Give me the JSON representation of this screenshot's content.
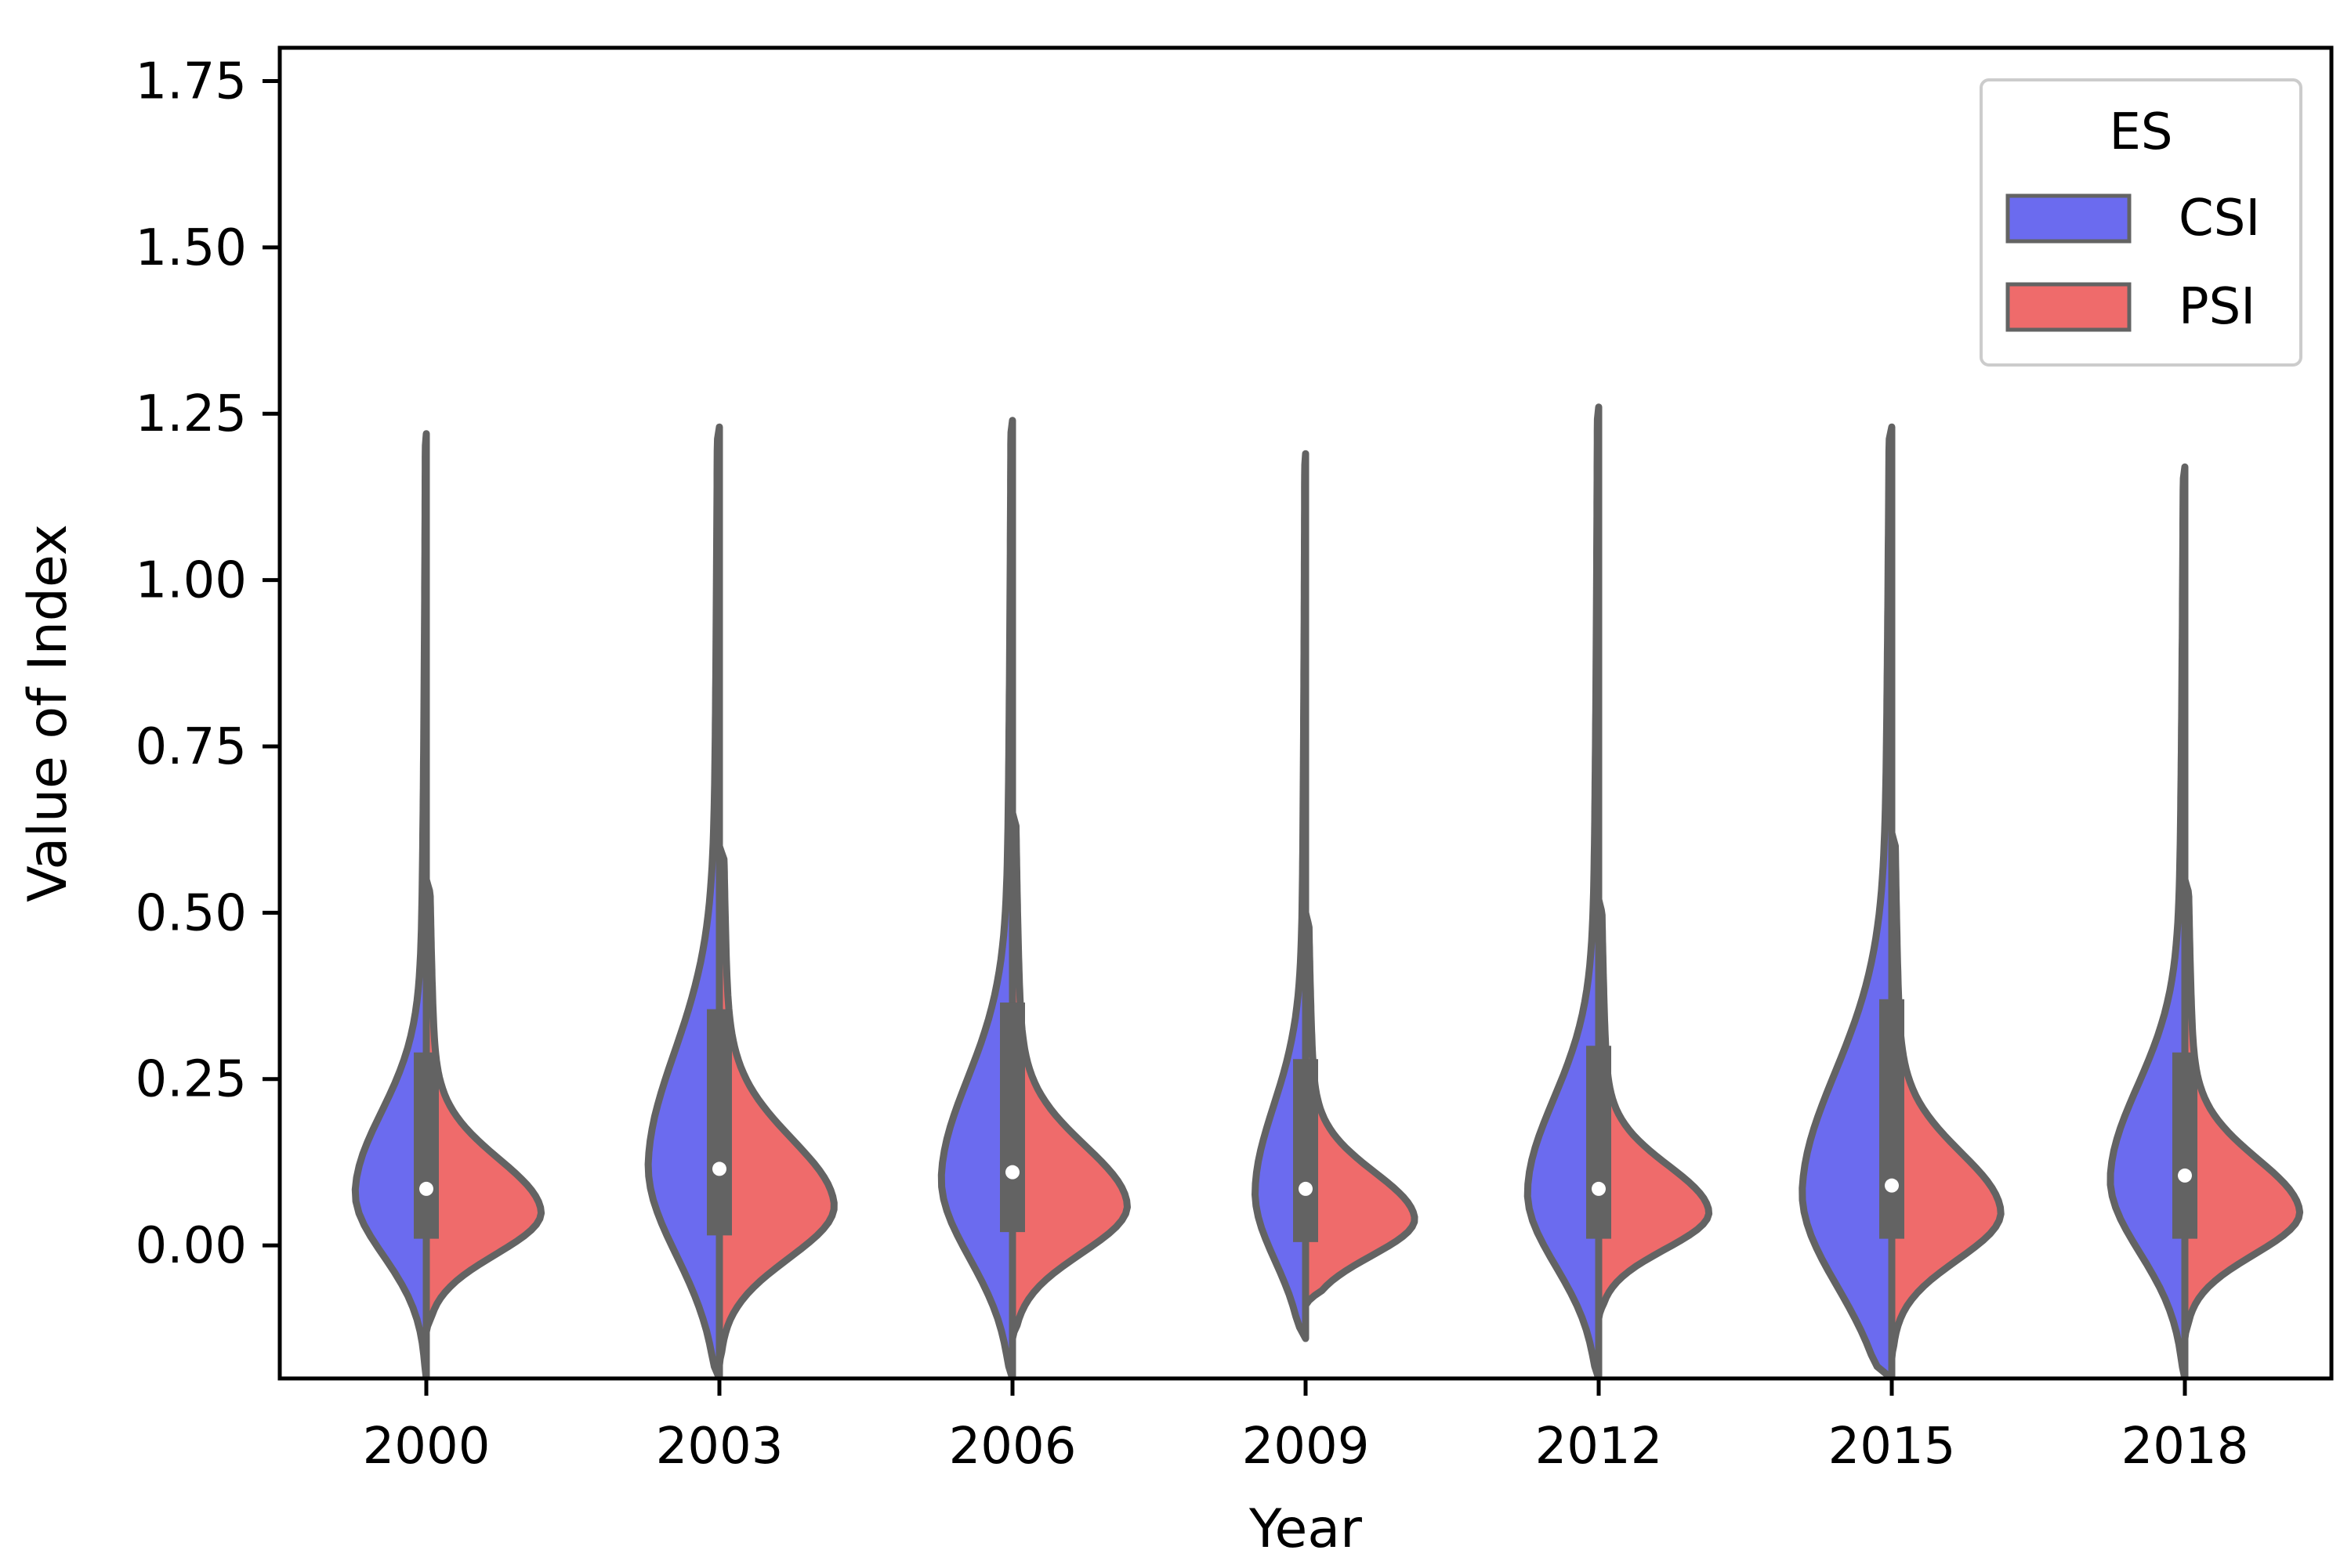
{
  "chart_data": {
    "type": "violin",
    "xlabel": "Year",
    "ylabel": "Value of Index",
    "categories": [
      "2000",
      "2003",
      "2006",
      "2009",
      "2012",
      "2015",
      "2018"
    ],
    "ylim": [
      -0.2,
      1.8
    ],
    "yticks": [
      "0.00",
      "0.25",
      "0.50",
      "0.75",
      "1.00",
      "1.25",
      "1.50",
      "1.75"
    ],
    "split": true,
    "legend": {
      "title": "ES",
      "placement": "top-right",
      "entries": [
        {
          "name": "CSI",
          "color": "#6b6bef"
        },
        {
          "name": "PSI",
          "color": "#ef6b6b"
        }
      ]
    },
    "colors": {
      "CSI": "#6b6bef",
      "PSI": "#ef6b6b",
      "outline": "#636363",
      "median": "#ffffff"
    },
    "series": [
      {
        "name": "CSI",
        "violins": [
          {
            "min": -0.2,
            "max": 1.22,
            "peak": 0.08,
            "width": 0.62,
            "spread": 0.12
          },
          {
            "min": -0.2,
            "max": 1.23,
            "peak": 0.12,
            "width": 0.62,
            "spread": 0.17
          },
          {
            "min": -0.2,
            "max": 1.24,
            "peak": 0.1,
            "width": 0.62,
            "spread": 0.15
          },
          {
            "min": -0.14,
            "max": 1.19,
            "peak": 0.08,
            "width": 0.44,
            "spread": 0.13
          },
          {
            "min": -0.2,
            "max": 1.26,
            "peak": 0.08,
            "width": 0.62,
            "spread": 0.14
          },
          {
            "min": -0.2,
            "max": 1.23,
            "peak": 0.08,
            "width": 0.78,
            "spread": 0.18
          },
          {
            "min": -0.2,
            "max": 1.17,
            "peak": 0.1,
            "width": 0.65,
            "spread": 0.14
          }
        ]
      },
      {
        "name": "PSI",
        "violins": [
          {
            "min": -0.13,
            "max": 0.55,
            "peak": 0.05,
            "width": 1.0,
            "spread": 0.08
          },
          {
            "min": -0.18,
            "max": 0.6,
            "peak": 0.06,
            "width": 1.0,
            "spread": 0.1
          },
          {
            "min": -0.14,
            "max": 0.65,
            "peak": 0.06,
            "width": 1.0,
            "spread": 0.09
          },
          {
            "min": -0.09,
            "max": 0.5,
            "peak": 0.04,
            "width": 0.95,
            "spread": 0.07
          },
          {
            "min": -0.11,
            "max": 0.52,
            "peak": 0.05,
            "width": 0.96,
            "spread": 0.07
          },
          {
            "min": -0.17,
            "max": 0.62,
            "peak": 0.05,
            "width": 0.95,
            "spread": 0.09
          },
          {
            "min": -0.14,
            "max": 0.55,
            "peak": 0.05,
            "width": 1.0,
            "spread": 0.08
          }
        ]
      }
    ],
    "box": [
      {
        "q1": 0.01,
        "median": 0.085,
        "q3": 0.29
      },
      {
        "q1": 0.015,
        "median": 0.115,
        "q3": 0.355
      },
      {
        "q1": 0.02,
        "median": 0.11,
        "q3": 0.365
      },
      {
        "q1": 0.005,
        "median": 0.085,
        "q3": 0.28
      },
      {
        "q1": 0.01,
        "median": 0.085,
        "q3": 0.3
      },
      {
        "q1": 0.01,
        "median": 0.09,
        "q3": 0.37
      },
      {
        "q1": 0.01,
        "median": 0.105,
        "q3": 0.29
      }
    ]
  }
}
